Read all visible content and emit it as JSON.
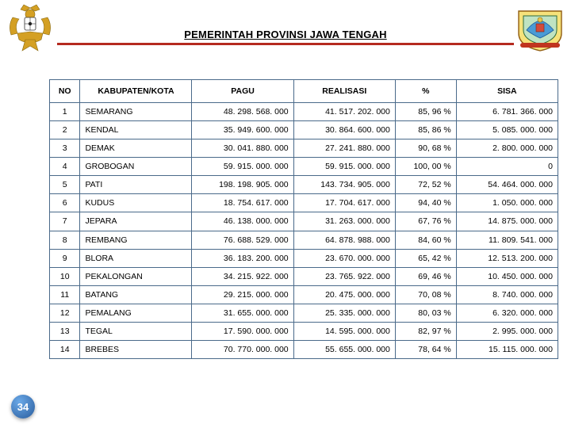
{
  "header": {
    "title": "PEMERINTAH PROVINSI JAWA TENGAH"
  },
  "page_number": "34",
  "emblems": {
    "left_name": "garuda-pancasila-emblem",
    "right_name": "jawa-tengah-provincial-emblem"
  },
  "colors": {
    "rule": "#b52a1f",
    "border": "#4a6a8a",
    "garuda": "#d4a024",
    "shield_bg": "#ffffff",
    "page_num_grad_a": "#6aa9e8",
    "page_num_grad_b": "#2a5c9c"
  },
  "table": {
    "columns": [
      "NO",
      "KABUPATEN/KOTA",
      "PAGU",
      "REALISASI",
      "%",
      "SISA"
    ],
    "rows": [
      {
        "no": "1",
        "kab": "SEMARANG",
        "pagu": "48. 298. 568. 000",
        "real": "41. 517. 202. 000",
        "pct": "85, 96 %",
        "sisa": "6. 781. 366. 000"
      },
      {
        "no": "2",
        "kab": "KENDAL",
        "pagu": "35. 949. 600. 000",
        "real": "30. 864. 600. 000",
        "pct": "85, 86 %",
        "sisa": "5. 085. 000. 000"
      },
      {
        "no": "3",
        "kab": "DEMAK",
        "pagu": "30. 041. 880. 000",
        "real": "27. 241. 880. 000",
        "pct": "90, 68 %",
        "sisa": "2. 800. 000. 000"
      },
      {
        "no": "4",
        "kab": "GROBOGAN",
        "pagu": "59. 915. 000. 000",
        "real": "59. 915. 000. 000",
        "pct": "100, 00 %",
        "sisa": "0"
      },
      {
        "no": "5",
        "kab": "PATI",
        "pagu": "198. 198. 905. 000",
        "real": "143. 734. 905. 000",
        "pct": "72, 52 %",
        "sisa": "54. 464. 000. 000"
      },
      {
        "no": "6",
        "kab": "KUDUS",
        "pagu": "18. 754. 617. 000",
        "real": "17. 704. 617. 000",
        "pct": "94, 40 %",
        "sisa": "1. 050. 000. 000"
      },
      {
        "no": "7",
        "kab": "JEPARA",
        "pagu": "46. 138. 000. 000",
        "real": "31. 263. 000. 000",
        "pct": "67, 76 %",
        "sisa": "14. 875. 000. 000"
      },
      {
        "no": "8",
        "kab": "REMBANG",
        "pagu": "76. 688. 529. 000",
        "real": "64. 878. 988. 000",
        "pct": "84, 60 %",
        "sisa": "11. 809. 541. 000"
      },
      {
        "no": "9",
        "kab": "BLORA",
        "pagu": "36. 183. 200. 000",
        "real": "23. 670. 000. 000",
        "pct": "65, 42 %",
        "sisa": "12. 513. 200. 000"
      },
      {
        "no": "10",
        "kab": "PEKALONGAN",
        "pagu": "34. 215. 922. 000",
        "real": "23. 765. 922. 000",
        "pct": "69, 46 %",
        "sisa": "10. 450. 000. 000"
      },
      {
        "no": "11",
        "kab": "BATANG",
        "pagu": "29. 215. 000. 000",
        "real": "20. 475. 000. 000",
        "pct": "70, 08 %",
        "sisa": "8. 740. 000. 000"
      },
      {
        "no": "12",
        "kab": "PEMALANG",
        "pagu": "31. 655. 000. 000",
        "real": "25. 335. 000. 000",
        "pct": "80, 03 %",
        "sisa": "6. 320. 000. 000"
      },
      {
        "no": "13",
        "kab": "TEGAL",
        "pagu": "17. 590. 000. 000",
        "real": "14. 595. 000. 000",
        "pct": "82, 97 %",
        "sisa": "2. 995. 000. 000"
      },
      {
        "no": "14",
        "kab": "BREBES",
        "pagu": "70. 770. 000. 000",
        "real": "55. 655. 000. 000",
        "pct": "78, 64 %",
        "sisa": "15. 115. 000. 000"
      }
    ]
  }
}
